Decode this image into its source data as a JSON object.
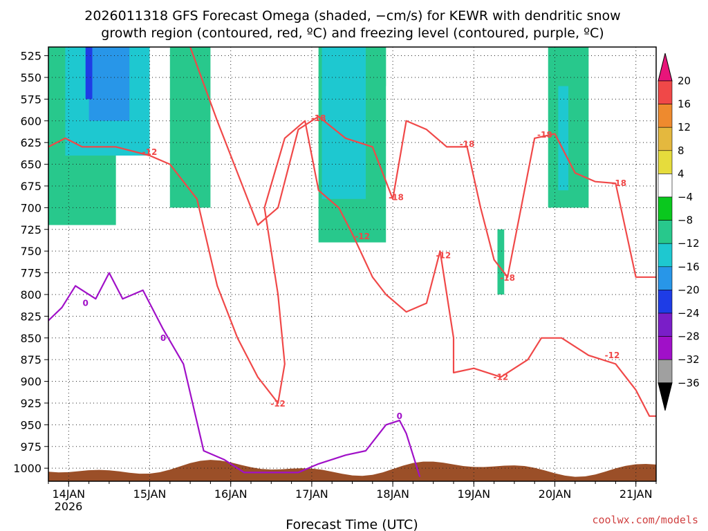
{
  "title": {
    "line1": "2026011318 GFS Forecast Omega (shaded, −cm/s) for KEWR with dendritic snow",
    "line2": "growth region (contoured, red, ºC) and freezing level (contoured, purple, ºC)"
  },
  "credit": "coolwx.com/models",
  "chart_data": {
    "type": "heatmap",
    "xlabel": "Forecast Time (UTC)",
    "ylabel": "",
    "x_ticks": [
      "14JAN",
      "15JAN",
      "16JAN",
      "17JAN",
      "18JAN",
      "19JAN",
      "20JAN",
      "21JAN"
    ],
    "x_sub_label": "2026",
    "x_range_hours": [
      0,
      180
    ],
    "x_tick_hours": [
      6,
      30,
      54,
      78,
      102,
      126,
      150,
      174
    ],
    "y_ticks": [
      525,
      550,
      575,
      600,
      625,
      650,
      675,
      700,
      725,
      750,
      775,
      800,
      825,
      850,
      875,
      900,
      925,
      950,
      975,
      1000
    ],
    "ylim_hpa": [
      1015,
      515
    ],
    "grid": "dotted",
    "colorbar": {
      "labels": [
        "20",
        "16",
        "12",
        "8",
        "4",
        "−4",
        "−8",
        "−12",
        "−16",
        "−20",
        "−24",
        "−28",
        "−32",
        "−36"
      ],
      "levels": [
        20,
        16,
        12,
        8,
        4,
        -4,
        -8,
        -12,
        -16,
        -20,
        -24,
        -28,
        -32,
        -36
      ],
      "colors": [
        "#e8157a",
        "#f04848",
        "#ee8a2e",
        "#e4b83e",
        "#e6dc3c",
        "#ffffff",
        "#0ac81e",
        "#28c88c",
        "#1ec8d0",
        "#2896e8",
        "#1e3ce6",
        "#7a1ec8",
        "#a010c8",
        "#a0a0a0",
        "#000000"
      ]
    },
    "shaded_regions": [
      {
        "level": -8,
        "hour_range": [
          0,
          20
        ],
        "p_range": [
          515,
          720
        ]
      },
      {
        "level": -12,
        "hour_range": [
          5,
          30
        ],
        "p_range": [
          515,
          640
        ]
      },
      {
        "level": -16,
        "hour_range": [
          12,
          24
        ],
        "p_range": [
          515,
          600
        ]
      },
      {
        "level": -20,
        "hour_range": [
          11,
          13
        ],
        "p_range": [
          515,
          575
        ]
      },
      {
        "level": -8,
        "hour_range": [
          36,
          48
        ],
        "p_range": [
          515,
          700
        ]
      },
      {
        "level": -8,
        "hour_range": [
          80,
          100
        ],
        "p_range": [
          515,
          740
        ]
      },
      {
        "level": -12,
        "hour_range": [
          81,
          94
        ],
        "p_range": [
          515,
          690
        ]
      },
      {
        "level": -8,
        "hour_range": [
          133,
          135
        ],
        "p_range": [
          725,
          800
        ]
      },
      {
        "level": -8,
        "hour_range": [
          148,
          160
        ],
        "p_range": [
          515,
          700
        ]
      },
      {
        "level": -12,
        "hour_range": [
          151,
          154
        ],
        "p_range": [
          560,
          680
        ]
      },
      {
        "level": 4,
        "hour_range": [
          52,
          60
        ],
        "p_range": [
          600,
          860
        ]
      },
      {
        "level": 4,
        "hour_range": [
          60,
          72
        ],
        "p_range": [
          830,
          960
        ]
      },
      {
        "level": 4,
        "hour_range": [
          100,
          104
        ],
        "p_range": [
          560,
          1000
        ]
      },
      {
        "level": 4,
        "hour_range": [
          112,
          120
        ],
        "p_range": [
          580,
          760
        ]
      },
      {
        "level": 4,
        "hour_range": [
          140,
          146
        ],
        "p_range": [
          515,
          1000
        ]
      },
      {
        "level": 4,
        "hour_range": [
          170,
          180
        ],
        "p_range": [
          820,
          990
        ]
      }
    ],
    "series": [
      {
        "name": "-12",
        "color": "#f04848",
        "label_points": [
          [
            30,
            636
          ],
          [
            68,
            926
          ],
          [
            93,
            733
          ],
          [
            117,
            755
          ],
          [
            134,
            895
          ],
          [
            167,
            870
          ]
        ],
        "points": [
          [
            0,
            630
          ],
          [
            5,
            620
          ],
          [
            10,
            630
          ],
          [
            20,
            630
          ],
          [
            30,
            640
          ],
          [
            36,
            650
          ],
          [
            44,
            690
          ],
          [
            50,
            790
          ],
          [
            56,
            850
          ],
          [
            62,
            895
          ],
          [
            68,
            925
          ],
          [
            70,
            880
          ],
          [
            68,
            800
          ],
          [
            64,
            700
          ],
          [
            70,
            620
          ],
          [
            76,
            600
          ],
          [
            80,
            680
          ],
          [
            86,
            700
          ],
          [
            90,
            730
          ],
          [
            96,
            780
          ],
          [
            100,
            800
          ],
          [
            106,
            820
          ],
          [
            112,
            810
          ],
          [
            116,
            750
          ],
          [
            120,
            850
          ],
          [
            120,
            890
          ],
          [
            126,
            885
          ],
          [
            134,
            895
          ],
          [
            142,
            875
          ],
          [
            146,
            850
          ],
          [
            152,
            850
          ],
          [
            160,
            870
          ],
          [
            168,
            880
          ],
          [
            174,
            910
          ],
          [
            178,
            940
          ],
          [
            180,
            940
          ]
        ]
      },
      {
        "name": "-18",
        "color": "#f04848",
        "label_points": [
          [
            80,
            597
          ],
          [
            103,
            688
          ],
          [
            124,
            627
          ],
          [
            136,
            781
          ],
          [
            147,
            616
          ],
          [
            169,
            672
          ]
        ],
        "points": [
          [
            42,
            515
          ],
          [
            50,
            600
          ],
          [
            56,
            660
          ],
          [
            62,
            720
          ],
          [
            68,
            700
          ],
          [
            74,
            610
          ],
          [
            80,
            595
          ],
          [
            88,
            620
          ],
          [
            96,
            630
          ],
          [
            102,
            690
          ],
          [
            106,
            600
          ],
          [
            112,
            610
          ],
          [
            118,
            630
          ],
          [
            124,
            630
          ],
          [
            128,
            700
          ],
          [
            132,
            760
          ],
          [
            136,
            780
          ],
          [
            140,
            700
          ],
          [
            144,
            620
          ],
          [
            150,
            615
          ],
          [
            156,
            660
          ],
          [
            162,
            670
          ],
          [
            168,
            672
          ],
          [
            174,
            780
          ],
          [
            180,
            780
          ]
        ]
      },
      {
        "name": "0",
        "color": "#a010c8",
        "label_points": [
          [
            11,
            810
          ],
          [
            34,
            850
          ],
          [
            104,
            940
          ]
        ],
        "points": [
          [
            0,
            830
          ],
          [
            4,
            815
          ],
          [
            8,
            790
          ],
          [
            14,
            805
          ],
          [
            18,
            775
          ],
          [
            22,
            805
          ],
          [
            28,
            795
          ],
          [
            34,
            840
          ],
          [
            40,
            880
          ],
          [
            46,
            980
          ],
          [
            52,
            990
          ],
          [
            58,
            1005
          ],
          [
            74,
            1005
          ],
          [
            80,
            995
          ],
          [
            88,
            985
          ],
          [
            94,
            980
          ],
          [
            100,
            950
          ],
          [
            104,
            945
          ],
          [
            106,
            960
          ],
          [
            110,
            1010
          ]
        ]
      }
    ]
  }
}
